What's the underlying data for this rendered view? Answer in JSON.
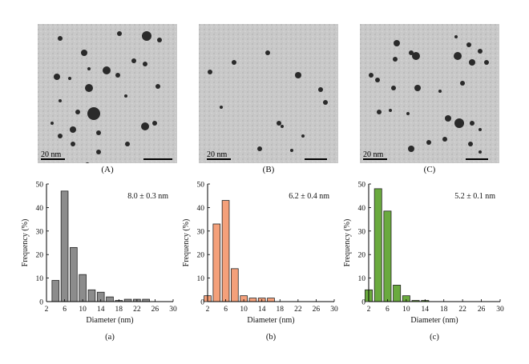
{
  "micrographs": [
    {
      "caption": "(A)",
      "scale_label": "20 nm",
      "particle_color": "#2a2a2a"
    },
    {
      "caption": "(B)",
      "scale_label": "20 nm",
      "particle_color": "#2a2a2a"
    },
    {
      "caption": "(C)",
      "scale_label": "20 nm",
      "particle_color": "#2a2a2a"
    }
  ],
  "chart_data": [
    {
      "type": "bar",
      "caption": "(a)",
      "annotation": "8.0 ± 0.3 nm",
      "xlabel": "Diameter (nm)",
      "ylabel": "Frequency (%)",
      "xlim": [
        2,
        30
      ],
      "ylim": [
        0,
        50
      ],
      "xticks": [
        2,
        6,
        10,
        14,
        18,
        22,
        26,
        30
      ],
      "yticks": [
        0,
        10,
        20,
        30,
        40,
        50
      ],
      "bar_color": "#8c8c8c",
      "x": [
        4,
        6,
        8,
        10,
        12,
        14,
        16,
        18,
        20,
        22,
        24
      ],
      "values": [
        9,
        47,
        23,
        11.5,
        5,
        4,
        2,
        0.5,
        1,
        1,
        1
      ]
    },
    {
      "type": "bar",
      "caption": "(b)",
      "annotation": "6.2 ± 0.4 nm",
      "xlabel": "Diameter (nm)",
      "ylabel": "Frequency (%)",
      "xlim": [
        2,
        30
      ],
      "ylim": [
        0,
        50
      ],
      "xticks": [
        2,
        6,
        10,
        14,
        18,
        22,
        26,
        30
      ],
      "yticks": [
        0,
        10,
        20,
        30,
        40,
        50
      ],
      "bar_color": "#f4a07a",
      "x": [
        2,
        4,
        6,
        8,
        10,
        12,
        14,
        16
      ],
      "values": [
        2.5,
        33,
        43,
        14,
        2.5,
        1.5,
        1.5,
        1.5
      ]
    },
    {
      "type": "bar",
      "caption": "(c)",
      "annotation": "5.2 ± 0.1 nm",
      "xlabel": "Diameter (nm)",
      "ylabel": "Frequency (%)",
      "xlim": [
        2,
        30
      ],
      "ylim": [
        0,
        50
      ],
      "xticks": [
        2,
        6,
        10,
        14,
        18,
        22,
        26,
        30
      ],
      "yticks": [
        0,
        10,
        20,
        30,
        40,
        50
      ],
      "bar_color": "#6aaa3e",
      "x": [
        2,
        4,
        6,
        8,
        10,
        12,
        14
      ],
      "values": [
        5,
        48,
        38.5,
        7,
        2.5,
        0.5,
        0.5
      ]
    }
  ]
}
